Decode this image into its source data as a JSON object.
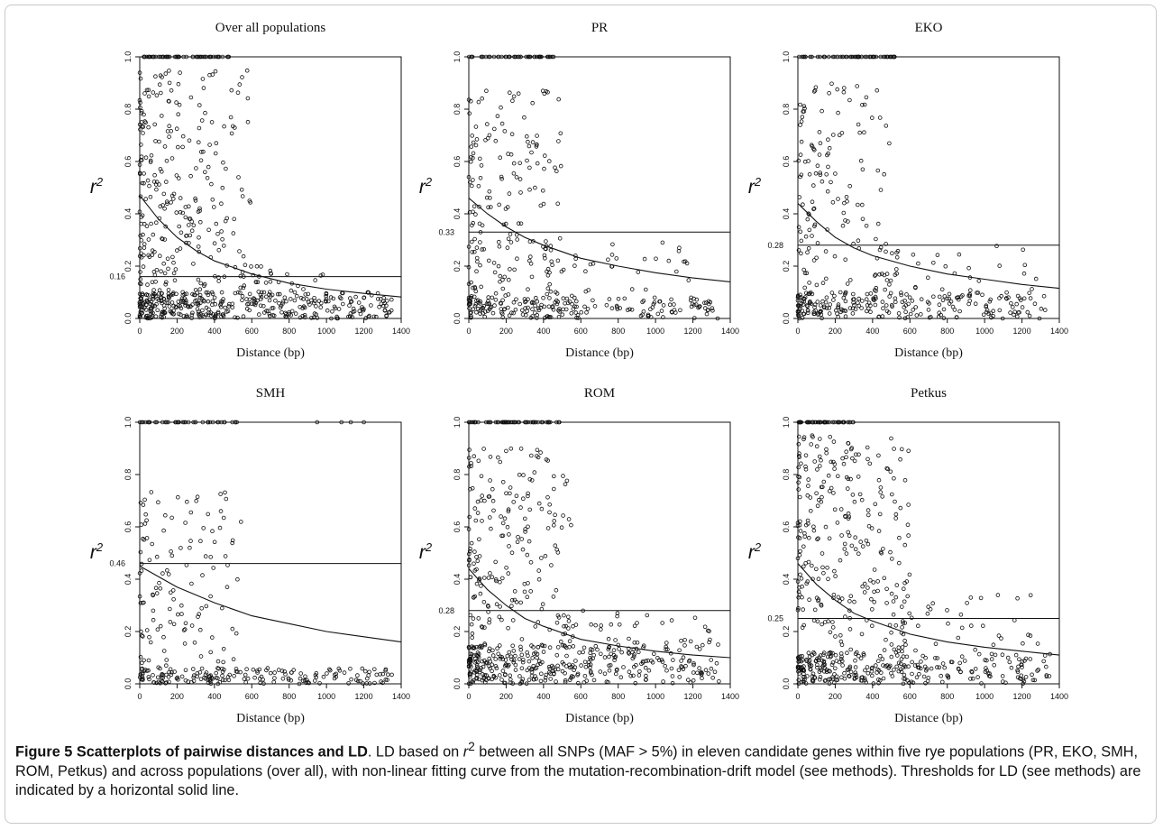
{
  "chart_data": [
    {
      "type": "scatter",
      "title": "Over all  populations",
      "xlabel": "Distance (bp)",
      "ylabel": "r2",
      "xlim": [
        0,
        1400
      ],
      "ylim": [
        0,
        1
      ],
      "xticks": [
        "0",
        "200",
        "400",
        "600",
        "800",
        "1000",
        "1200",
        "1400"
      ],
      "yticks": [
        "0.0",
        "0.2",
        "0.4",
        "0.6",
        "0.8",
        "1.0"
      ],
      "threshold": 0.16,
      "threshold_label": "0.16",
      "fit_curve": {
        "x": [
          0,
          100,
          200,
          300,
          400,
          600,
          800,
          1000,
          1200,
          1400
        ],
        "y": [
          0.47,
          0.38,
          0.31,
          0.26,
          0.22,
          0.17,
          0.135,
          0.112,
          0.096,
          0.082
        ]
      },
      "points_note": "dense scatter of pairwise SNP r2 vs distance",
      "point_bands": [
        {
          "xmin": 0,
          "xmax": 480,
          "y": 1.0,
          "n": 55
        },
        {
          "xmin": 0,
          "xmax": 1350,
          "ymin": 0,
          "ymax": 0.1,
          "n": 380
        },
        {
          "xmin": 0,
          "xmax": 600,
          "ymin": 0.1,
          "ymax": 0.95,
          "n": 260
        },
        {
          "xmin": 500,
          "xmax": 1000,
          "ymin": 0.1,
          "ymax": 0.2,
          "n": 30
        }
      ]
    },
    {
      "type": "scatter",
      "title": "PR",
      "xlabel": "Distance (bp)",
      "ylabel": "r2",
      "xlim": [
        0,
        1400
      ],
      "ylim": [
        0,
        1
      ],
      "xticks": [
        "0",
        "200",
        "400",
        "600",
        "800",
        "1000",
        "1200",
        "1400"
      ],
      "yticks": [
        "0.0",
        "0.2",
        "0.4",
        "0.6",
        "0.8",
        "1.0"
      ],
      "threshold": 0.33,
      "threshold_label": "0.33",
      "fit_curve": {
        "x": [
          0,
          100,
          200,
          300,
          400,
          600,
          800,
          1000,
          1200,
          1400
        ],
        "y": [
          0.46,
          0.4,
          0.35,
          0.31,
          0.28,
          0.23,
          0.2,
          0.175,
          0.155,
          0.14
        ]
      },
      "points_note": "pairwise SNP r2 vs distance",
      "point_bands": [
        {
          "xmin": 0,
          "xmax": 480,
          "y": 1.0,
          "n": 45
        },
        {
          "xmin": 0,
          "xmax": 1350,
          "ymin": 0,
          "ymax": 0.08,
          "n": 200
        },
        {
          "xmin": 0,
          "xmax": 500,
          "ymin": 0.08,
          "ymax": 0.88,
          "n": 170
        },
        {
          "xmin": 400,
          "xmax": 1200,
          "ymin": 0.08,
          "ymax": 0.3,
          "n": 45
        }
      ]
    },
    {
      "type": "scatter",
      "title": "EKO",
      "xlabel": "Distance (bp)",
      "ylabel": "r2",
      "xlim": [
        0,
        1400
      ],
      "ylim": [
        0,
        1
      ],
      "xticks": [
        "0",
        "200",
        "400",
        "600",
        "800",
        "1000",
        "1200",
        "1400"
      ],
      "yticks": [
        "0.0",
        "0.2",
        "0.4",
        "0.6",
        "0.8",
        "1.0"
      ],
      "threshold": 0.28,
      "threshold_label": "0.28",
      "fit_curve": {
        "x": [
          0,
          100,
          200,
          300,
          400,
          600,
          800,
          1000,
          1200,
          1400
        ],
        "y": [
          0.44,
          0.37,
          0.31,
          0.27,
          0.24,
          0.2,
          0.17,
          0.15,
          0.13,
          0.115
        ]
      },
      "points_note": "pairwise SNP r2 vs distance",
      "point_bands": [
        {
          "xmin": 0,
          "xmax": 520,
          "y": 1.0,
          "n": 60
        },
        {
          "xmin": 0,
          "xmax": 1350,
          "ymin": 0,
          "ymax": 0.1,
          "n": 230
        },
        {
          "xmin": 0,
          "xmax": 500,
          "ymin": 0.1,
          "ymax": 0.9,
          "n": 130
        },
        {
          "xmin": 400,
          "xmax": 1300,
          "ymin": 0.05,
          "ymax": 0.28,
          "n": 50
        }
      ]
    },
    {
      "type": "scatter",
      "title": "SMH",
      "xlabel": "Distance (bp)",
      "ylabel": "r2",
      "xlim": [
        0,
        1400
      ],
      "ylim": [
        0,
        1
      ],
      "xticks": [
        "0",
        "200",
        "400",
        "600",
        "800",
        "1000",
        "1200",
        "1400"
      ],
      "yticks": [
        "0.0",
        "0.2",
        "0.4",
        "0.6",
        "0.8",
        "1.0"
      ],
      "threshold": 0.46,
      "threshold_label": "0.46",
      "fit_curve": {
        "x": [
          0,
          100,
          200,
          300,
          400,
          600,
          800,
          1000,
          1200,
          1400
        ],
        "y": [
          0.45,
          0.41,
          0.37,
          0.34,
          0.31,
          0.26,
          0.23,
          0.2,
          0.18,
          0.16
        ]
      },
      "points_note": "pairwise SNP r2 vs distance",
      "point_bands": [
        {
          "xmin": 0,
          "xmax": 520,
          "y": 1.0,
          "n": 40
        },
        {
          "xmin": 0,
          "xmax": 1350,
          "ymin": 0,
          "ymax": 0.06,
          "n": 180
        },
        {
          "xmin": 0,
          "xmax": 550,
          "ymin": 0.06,
          "ymax": 0.75,
          "n": 120
        }
      ],
      "extra_points": [
        {
          "x": 950,
          "y": 1.0
        },
        {
          "x": 1080,
          "y": 1.0
        },
        {
          "x": 1130,
          "y": 1.0
        },
        {
          "x": 1200,
          "y": 1.0
        }
      ]
    },
    {
      "type": "scatter",
      "title": "ROM",
      "xlabel": "Distance (bp)",
      "ylabel": "r2",
      "xlim": [
        0,
        1400
      ],
      "ylim": [
        0,
        1
      ],
      "xticks": [
        "0",
        "200",
        "400",
        "600",
        "800",
        "1000",
        "1200",
        "1400"
      ],
      "yticks": [
        "0.0",
        "0.2",
        "0.4",
        "0.6",
        "0.8",
        "1.0"
      ],
      "threshold": 0.28,
      "threshold_label": "0.28",
      "fit_curve": {
        "x": [
          0,
          100,
          200,
          300,
          400,
          600,
          800,
          1000,
          1200,
          1400
        ],
        "y": [
          0.44,
          0.36,
          0.3,
          0.25,
          0.22,
          0.17,
          0.145,
          0.125,
          0.11,
          0.1
        ]
      },
      "points_note": "pairwise SNP r2 vs distance",
      "point_bands": [
        {
          "xmin": 0,
          "xmax": 500,
          "y": 1.0,
          "n": 55
        },
        {
          "xmin": 0,
          "xmax": 1350,
          "ymin": 0,
          "ymax": 0.15,
          "n": 340
        },
        {
          "xmin": 0,
          "xmax": 550,
          "ymin": 0.15,
          "ymax": 0.9,
          "n": 190
        },
        {
          "xmin": 500,
          "xmax": 1300,
          "ymin": 0.05,
          "ymax": 0.28,
          "n": 70
        }
      ]
    },
    {
      "type": "scatter",
      "title": "Petkus",
      "xlabel": "Distance (bp)",
      "ylabel": "r2",
      "xlim": [
        0,
        1400
      ],
      "ylim": [
        0,
        1
      ],
      "xticks": [
        "0",
        "200",
        "400",
        "600",
        "800",
        "1000",
        "1200",
        "1400"
      ],
      "yticks": [
        "0.0",
        "0.2",
        "0.4",
        "0.6",
        "0.8",
        "1.0"
      ],
      "threshold": 0.25,
      "threshold_label": "0.25",
      "fit_curve": {
        "x": [
          0,
          100,
          200,
          300,
          400,
          600,
          800,
          1000,
          1200,
          1400
        ],
        "y": [
          0.46,
          0.38,
          0.32,
          0.27,
          0.24,
          0.19,
          0.16,
          0.14,
          0.125,
          0.11
        ]
      },
      "points_note": "pairwise SNP r2 vs distance",
      "point_bands": [
        {
          "xmin": 0,
          "xmax": 300,
          "y": 1.0,
          "n": 45
        },
        {
          "xmin": 0,
          "xmax": 1350,
          "ymin": 0,
          "ymax": 0.12,
          "n": 300
        },
        {
          "xmin": 0,
          "xmax": 600,
          "ymin": 0.12,
          "ymax": 0.95,
          "n": 260
        },
        {
          "xmin": 500,
          "xmax": 1350,
          "ymin": 0.12,
          "ymax": 0.35,
          "n": 45
        }
      ]
    }
  ],
  "caption": {
    "title": "Figure 5 Scatterplots of pairwise distances and LD",
    "body_prefix": ". LD based on ",
    "r_symbol": "r",
    "r_exp": "2",
    "body_rest": " between all SNPs (MAF > 5%) in eleven candidate genes within five rye populations (PR, EKO, SMH, ROM, Petkus) and across populations (over all), with non-linear fitting curve from the mutation-recombination-drift model (see methods). Thresholds for LD (see methods) are indicated by a horizontal solid line."
  }
}
